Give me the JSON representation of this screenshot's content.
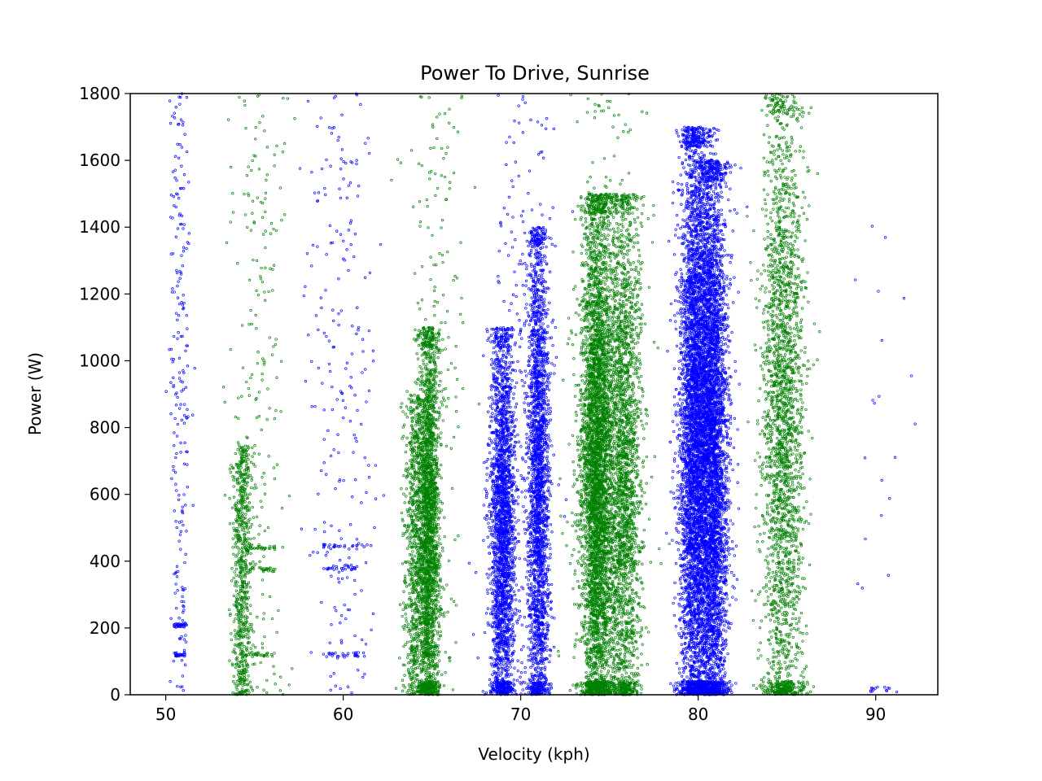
{
  "chart_data": {
    "type": "scatter",
    "title": "Power To Drive, Sunrise",
    "xlabel": "Velocity (kph)",
    "ylabel": "Power (W)",
    "xlim": [
      48,
      93.5
    ],
    "ylim": [
      0,
      1800
    ],
    "xticks": [
      50,
      60,
      70,
      80,
      90
    ],
    "yticks": [
      0,
      200,
      400,
      600,
      800,
      1000,
      1200,
      1400,
      1600,
      1800
    ],
    "grid": false,
    "legend": "none",
    "marker": "open circle",
    "colors": {
      "blue": "#0000ff",
      "green": "#008000"
    },
    "clusters": [
      {
        "color": "blue",
        "x_center": 50.8,
        "x_spread": 0.3,
        "y_range": [
          0,
          1800
        ],
        "density": "sparse",
        "dense_rows_y": [
          120,
          210
        ]
      },
      {
        "color": "green",
        "x_center": 54.3,
        "x_spread": 0.25,
        "y_range": [
          0,
          750
        ],
        "density": "medium"
      },
      {
        "color": "green",
        "x_center": 55.3,
        "x_spread": 0.8,
        "y_range": [
          0,
          1800
        ],
        "density": "sparse",
        "dense_rows_y": [
          120,
          375,
          440
        ]
      },
      {
        "color": "blue",
        "x_center": 60.0,
        "x_spread": 1.1,
        "y_range": [
          0,
          1800
        ],
        "density": "sparse",
        "dense_rows_y": [
          120,
          380,
          445
        ]
      },
      {
        "color": "green",
        "x_center": 64.0,
        "x_spread": 0.3,
        "y_range": [
          0,
          900
        ],
        "density": "medium"
      },
      {
        "color": "green",
        "x_center": 64.8,
        "x_spread": 0.3,
        "y_range": [
          0,
          1100
        ],
        "density": "dense",
        "dense_rows_y": [
          120
        ]
      },
      {
        "color": "green",
        "x_center": 65.2,
        "x_spread": 0.8,
        "y_range": [
          0,
          1800
        ],
        "density": "sparse"
      },
      {
        "color": "blue",
        "x_center": 69.0,
        "x_spread": 0.35,
        "y_range": [
          0,
          1100
        ],
        "density": "dense"
      },
      {
        "color": "blue",
        "x_center": 71.0,
        "x_spread": 0.3,
        "y_range": [
          0,
          1400
        ],
        "density": "dense"
      },
      {
        "color": "blue",
        "x_center": 70.0,
        "x_spread": 1.0,
        "y_range": [
          0,
          1800
        ],
        "density": "sparse"
      },
      {
        "color": "green",
        "x_center": 74.3,
        "x_spread": 0.45,
        "y_range": [
          0,
          1500
        ],
        "density": "very dense"
      },
      {
        "color": "green",
        "x_center": 75.8,
        "x_spread": 0.5,
        "y_range": [
          0,
          1500
        ],
        "density": "dense"
      },
      {
        "color": "green",
        "x_center": 75.0,
        "x_spread": 1.2,
        "y_range": [
          0,
          1800
        ],
        "density": "sparse"
      },
      {
        "color": "blue",
        "x_center": 79.8,
        "x_spread": 0.45,
        "y_range": [
          0,
          1700
        ],
        "density": "very dense"
      },
      {
        "color": "blue",
        "x_center": 80.8,
        "x_spread": 0.45,
        "y_range": [
          0,
          1600
        ],
        "density": "very dense"
      },
      {
        "color": "green",
        "x_center": 84.8,
        "x_spread": 0.6,
        "y_range": [
          0,
          1800
        ],
        "density": "dense",
        "dense_rows_y": [
          10
        ]
      },
      {
        "color": "blue",
        "x_center": 90.5,
        "x_spread": 0.8,
        "y_range": [
          0,
          1550
        ],
        "density": "very sparse",
        "dense_rows_y": [
          15
        ]
      }
    ]
  }
}
